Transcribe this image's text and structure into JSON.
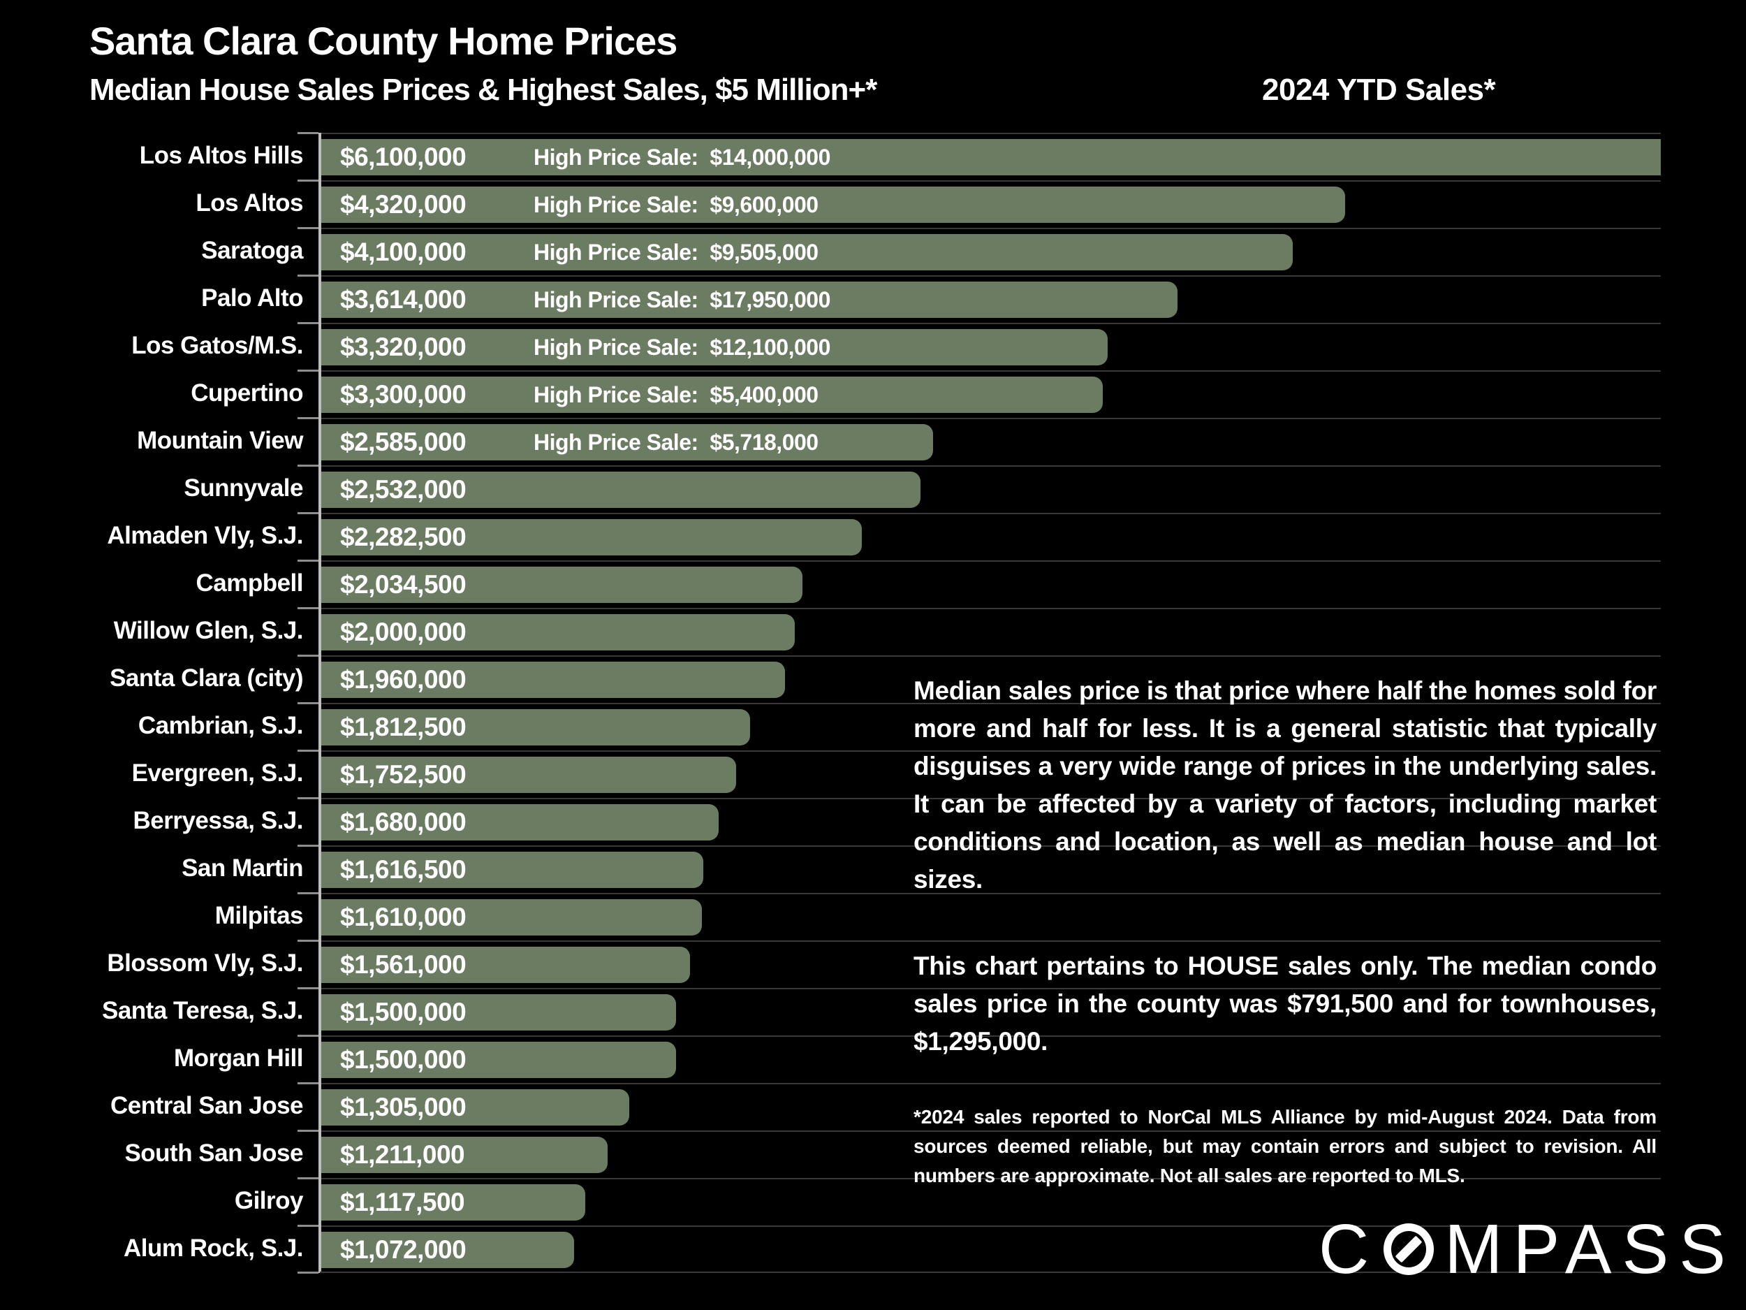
{
  "header": {
    "title": "Santa Clara County Home Prices",
    "subtitle": "Median House Sales Prices & Highest Sales, $5 Million+*",
    "right_label": "2024 YTD Sales*"
  },
  "chart_data": {
    "type": "bar",
    "orientation": "horizontal",
    "title": "Santa Clara County Home Prices",
    "subtitle": "Median House Sales Prices & Highest Sales, $5 Million+*",
    "xlabel": "",
    "ylabel": "",
    "xlim": [
      0,
      5650000
    ],
    "axis_max": 5650000,
    "grid": true,
    "bar_color": "#6c7c63",
    "categories": [
      "Los Altos Hills",
      "Los Altos",
      "Saratoga",
      "Palo Alto",
      "Los Gatos/M.S.",
      "Cupertino",
      "Mountain View",
      "Sunnyvale",
      "Almaden Vly, S.J.",
      "Campbell",
      "Willow Glen, S.J.",
      "Santa Clara (city)",
      "Cambrian, S.J.",
      "Evergreen, S.J.",
      "Berryessa, S.J.",
      "San Martin",
      "Milpitas",
      "Blossom Vly, S.J.",
      "Santa Teresa, S.J.",
      "Morgan Hill",
      "Central San Jose",
      "South San Jose",
      "Gilroy",
      "Alum Rock, S.J."
    ],
    "values": [
      6100000,
      4320000,
      4100000,
      3614000,
      3320000,
      3300000,
      2585000,
      2532000,
      2282500,
      2034500,
      2000000,
      1960000,
      1812500,
      1752500,
      1680000,
      1616500,
      1610000,
      1561000,
      1500000,
      1500000,
      1305000,
      1211000,
      1117500,
      1072000
    ],
    "rows": [
      {
        "label": "Los Altos Hills",
        "value": 6100000,
        "value_label": "$6,100,000",
        "high_price_label": "High Price Sale:  $14,000,000"
      },
      {
        "label": "Los Altos",
        "value": 4320000,
        "value_label": "$4,320,000",
        "high_price_label": "High Price Sale:  $9,600,000"
      },
      {
        "label": "Saratoga",
        "value": 4100000,
        "value_label": "$4,100,000",
        "high_price_label": "High Price Sale:  $9,505,000"
      },
      {
        "label": "Palo Alto",
        "value": 3614000,
        "value_label": "$3,614,000",
        "high_price_label": "High Price Sale:  $17,950,000"
      },
      {
        "label": "Los Gatos/M.S.",
        "value": 3320000,
        "value_label": "$3,320,000",
        "high_price_label": "High Price Sale:  $12,100,000"
      },
      {
        "label": "Cupertino",
        "value": 3300000,
        "value_label": "$3,300,000",
        "high_price_label": "High Price Sale:  $5,400,000"
      },
      {
        "label": "Mountain View",
        "value": 2585000,
        "value_label": "$2,585,000",
        "high_price_label": "High Price Sale:  $5,718,000"
      },
      {
        "label": "Sunnyvale",
        "value": 2532000,
        "value_label": "$2,532,000",
        "high_price_label": null
      },
      {
        "label": "Almaden Vly, S.J.",
        "value": 2282500,
        "value_label": "$2,282,500",
        "high_price_label": null
      },
      {
        "label": "Campbell",
        "value": 2034500,
        "value_label": "$2,034,500",
        "high_price_label": null
      },
      {
        "label": "Willow Glen, S.J.",
        "value": 2000000,
        "value_label": "$2,000,000",
        "high_price_label": null
      },
      {
        "label": "Santa Clara (city)",
        "value": 1960000,
        "value_label": "$1,960,000",
        "high_price_label": null
      },
      {
        "label": "Cambrian, S.J.",
        "value": 1812500,
        "value_label": "$1,812,500",
        "high_price_label": null
      },
      {
        "label": "Evergreen, S.J.",
        "value": 1752500,
        "value_label": "$1,752,500",
        "high_price_label": null
      },
      {
        "label": "Berryessa, S.J.",
        "value": 1680000,
        "value_label": "$1,680,000",
        "high_price_label": null
      },
      {
        "label": "San Martin",
        "value": 1616500,
        "value_label": "$1,616,500",
        "high_price_label": null
      },
      {
        "label": "Milpitas",
        "value": 1610000,
        "value_label": "$1,610,000",
        "high_price_label": null
      },
      {
        "label": "Blossom Vly, S.J.",
        "value": 1561000,
        "value_label": "$1,561,000",
        "high_price_label": null
      },
      {
        "label": "Santa Teresa, S.J.",
        "value": 1500000,
        "value_label": "$1,500,000",
        "high_price_label": null
      },
      {
        "label": "Morgan Hill",
        "value": 1500000,
        "value_label": "$1,500,000",
        "high_price_label": null
      },
      {
        "label": "Central San Jose",
        "value": 1305000,
        "value_label": "$1,305,000",
        "high_price_label": null
      },
      {
        "label": "South San Jose",
        "value": 1211000,
        "value_label": "$1,211,000",
        "high_price_label": null
      },
      {
        "label": "Gilroy",
        "value": 1117500,
        "value_label": "$1,117,500",
        "high_price_label": null
      },
      {
        "label": "Alum Rock, S.J.",
        "value": 1072000,
        "value_label": "$1,072,000",
        "high_price_label": null
      }
    ]
  },
  "sidebar": {
    "paragraph1": "Median sales price is that price where half the homes sold for more and half for less. It is a general statistic that typically disguises a very wide range of prices in the underlying sales. It can be affected by a variety of factors, including market conditions and location, as well as median house and lot sizes.",
    "paragraph2": "This chart pertains to HOUSE sales only. The median condo sales price in the county was $791,500 and for townhouses, $1,295,000.",
    "footnote": "*2024 sales reported to NorCal MLS Alliance by mid-August 2024. Data from sources deemed reliable, but may contain errors and subject to revision. All numbers are approximate. Not all sales are reported to MLS."
  },
  "logo": {
    "brand": "COMPASS",
    "left": "C",
    "right": "MPASS"
  }
}
